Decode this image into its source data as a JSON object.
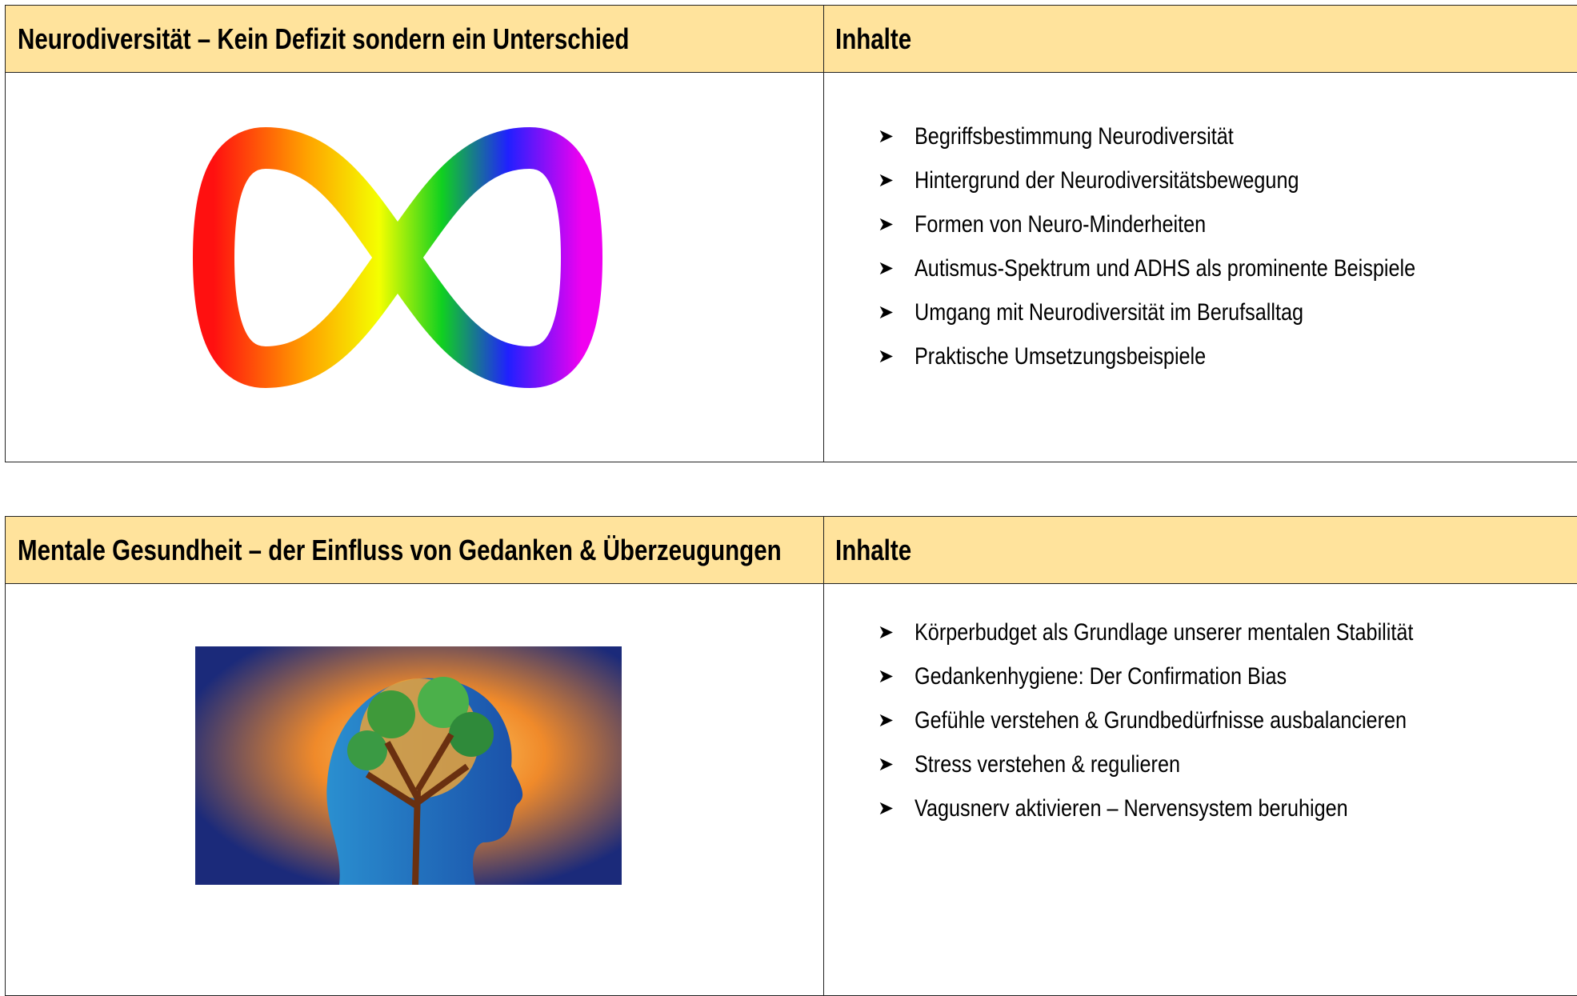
{
  "sections": [
    {
      "title": "Neurodiversität – Kein Defizit sondern ein Unterschied",
      "contents_header": "Inhalte",
      "items": [
        "Begriffsbestimmung Neurodiversität",
        "Hintergrund der Neurodiversitätsbewegung",
        "Formen von Neuro-Minderheiten",
        "Autismus-Spektrum und ADHS als prominente Beispiele",
        "Umgang mit Neurodiversität im Berufsalltag",
        "Praktische Umsetzungsbeispiele"
      ]
    },
    {
      "title": "Mentale Gesundheit – der Einfluss von Gedanken & Überzeugungen",
      "contents_header": "Inhalte",
      "items": [
        "Körperbudget als Grundlage unserer mentalen Stabilität",
        "Gedankenhygiene: Der Confirmation Bias",
        "Gefühle verstehen & Grundbedürfnisse ausbalancieren",
        "Stress verstehen & regulieren",
        "Vagusnerv aktivieren – Nervensystem beruhigen"
      ]
    }
  ]
}
